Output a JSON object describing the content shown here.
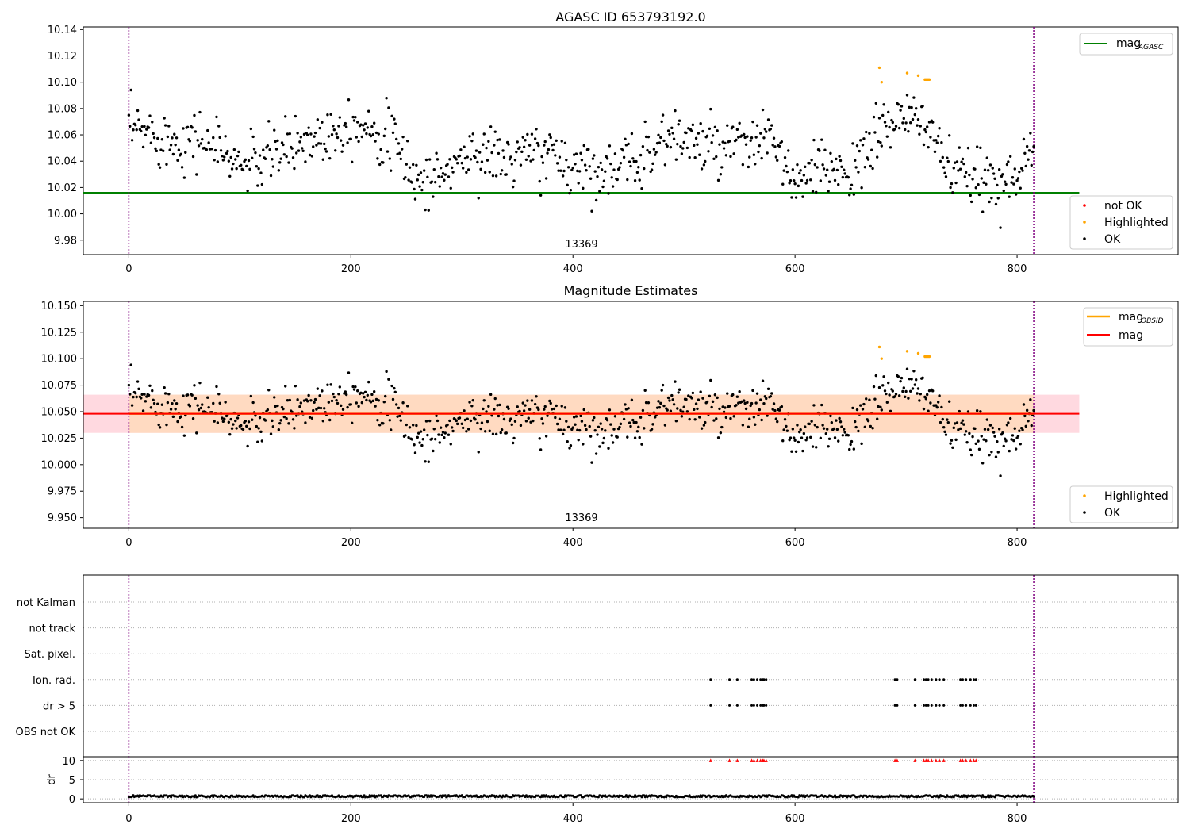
{
  "titles": {
    "top": "AGASC ID 653793192.0",
    "middle": "Magnitude Estimates"
  },
  "obsid_label": "13369",
  "legend_top": {
    "line": {
      "main": "mag",
      "sub": "AGASC"
    },
    "points": [
      "not OK",
      "Highlighted",
      "OK"
    ]
  },
  "legend_mid": {
    "lines": [
      {
        "main": "mag",
        "sub": "OBSID"
      },
      {
        "main": "mag",
        "sub": ""
      }
    ],
    "points": [
      "Highlighted",
      "OK"
    ]
  },
  "flags_panel": {
    "categories": [
      "not Kalman",
      "not track",
      "Sat. pixel.",
      "Ion. rad.",
      "dr > 5",
      "OBS not OK"
    ]
  },
  "dr_panel": {
    "ylabel": "dr",
    "yticks": [
      "0",
      "5",
      "10"
    ]
  },
  "colors": {
    "ok": "#000000",
    "highlighted": "#ffa500",
    "not_ok": "#ff0000",
    "mag_agasc": "#008000",
    "mag_obsid": "#ffa500",
    "mag": "#ff0000",
    "band_outer": "#ffc0cb",
    "band_inner": "#ffdab9",
    "obs_boundary": "#800080"
  },
  "chart_data": [
    {
      "type": "scatter",
      "title": "AGASC ID 653793192.0",
      "x_ticks": [
        "0",
        "200",
        "400",
        "600",
        "800"
      ],
      "y_ticks": [
        "9.98",
        "10.00",
        "10.02",
        "10.04",
        "10.06",
        "10.08",
        "10.10",
        "10.12",
        "10.14"
      ],
      "xlim": [
        -41,
        945
      ],
      "ylim": [
        9.969,
        10.142
      ],
      "mag_agasc": 10.016,
      "obs_boundaries": [
        0,
        815
      ],
      "highlighted": {
        "x": [
          676,
          678,
          701,
          711,
          717,
          718,
          719,
          720,
          721
        ],
        "y": [
          10.111,
          10.1,
          10.107,
          10.105,
          10.102,
          10.102,
          10.102,
          10.102,
          10.102
        ]
      },
      "ok_trend": {
        "x": [
          0,
          20,
          40,
          60,
          80,
          100,
          120,
          140,
          160,
          180,
          200,
          220,
          240,
          260,
          280,
          300,
          320,
          340,
          360,
          380,
          400,
          420,
          440,
          460,
          480,
          500,
          520,
          540,
          560,
          580,
          600,
          620,
          640,
          660,
          680,
          700,
          720,
          740,
          760,
          780,
          800,
          815
        ],
        "y": [
          10.063,
          10.062,
          10.055,
          10.058,
          10.05,
          10.037,
          10.04,
          10.049,
          10.056,
          10.062,
          10.07,
          10.066,
          10.052,
          10.025,
          10.028,
          10.043,
          10.047,
          10.04,
          10.046,
          10.045,
          10.036,
          10.036,
          10.032,
          10.044,
          10.057,
          10.058,
          10.05,
          10.048,
          10.052,
          10.058,
          10.02,
          10.032,
          10.036,
          10.035,
          10.07,
          10.07,
          10.07,
          10.03,
          10.026,
          10.024,
          10.033,
          10.05
        ]
      }
    },
    {
      "type": "scatter",
      "title": "Magnitude Estimates",
      "x_ticks": [
        "0",
        "200",
        "400",
        "600",
        "800"
      ],
      "y_ticks": [
        "9.950",
        "9.975",
        "10.000",
        "10.025",
        "10.050",
        "10.075",
        "10.100",
        "10.125",
        "10.150"
      ],
      "xlim": [
        -41,
        945
      ],
      "ylim": [
        9.94,
        10.154
      ],
      "mag": 10.048,
      "mag_obsid": 10.048,
      "band_outer": [
        10.03,
        10.066
      ],
      "band_inner": [
        10.03,
        10.066
      ]
    },
    {
      "type": "scatter",
      "title": "",
      "x_ticks": [
        "0",
        "200",
        "400",
        "600",
        "800"
      ],
      "xlim": [
        -41,
        945
      ],
      "flag_rows": {
        "Ion. rad.": [
          524,
          541,
          548,
          561,
          563,
          566,
          569,
          571,
          572,
          574,
          690,
          692,
          708,
          716,
          718,
          720,
          723,
          727,
          730,
          734,
          749,
          751,
          754,
          758,
          761,
          763
        ],
        "dr > 5": [
          524,
          541,
          548,
          561,
          563,
          566,
          569,
          571,
          572,
          574,
          690,
          692,
          708,
          716,
          718,
          720,
          723,
          727,
          730,
          734,
          749,
          751,
          754,
          758,
          761,
          763
        ]
      },
      "dr_ylim": [
        -1,
        11
      ],
      "dr_clipped_at": 10,
      "dr_typical": 0.7
    }
  ]
}
